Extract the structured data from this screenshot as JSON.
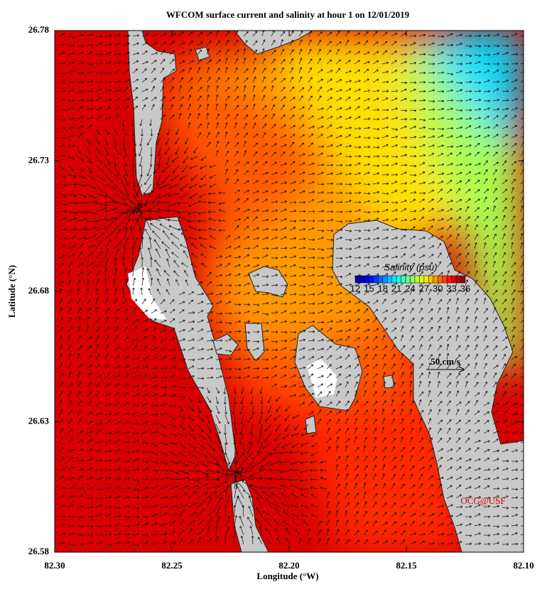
{
  "chart_data": {
    "type": "map",
    "title": "WFCOM surface current and salinity at hour 1 on 12/01/2019",
    "xlabel": "Longitude (°W)",
    "ylabel": "Latitude (°N)",
    "xlim": [
      82.3,
      82.1
    ],
    "xticks": [
      {
        "value": 82.3,
        "label": "82.30"
      },
      {
        "value": 82.25,
        "label": "82.25"
      },
      {
        "value": 82.2,
        "label": "82.20"
      },
      {
        "value": 82.15,
        "label": "82.15"
      },
      {
        "value": 82.1,
        "label": "82.10"
      }
    ],
    "ylim": [
      26.58,
      26.78
    ],
    "yticks": [
      26.58,
      26.63,
      26.68,
      26.73,
      26.78
    ],
    "colorbar": {
      "title": "Salinity (psu)",
      "clim": [
        12,
        36
      ],
      "ticks": [
        12,
        15,
        18,
        21,
        24,
        27,
        30,
        33,
        36
      ]
    },
    "scale_label": "50 cm/s",
    "credit": "OCG@USF"
  }
}
